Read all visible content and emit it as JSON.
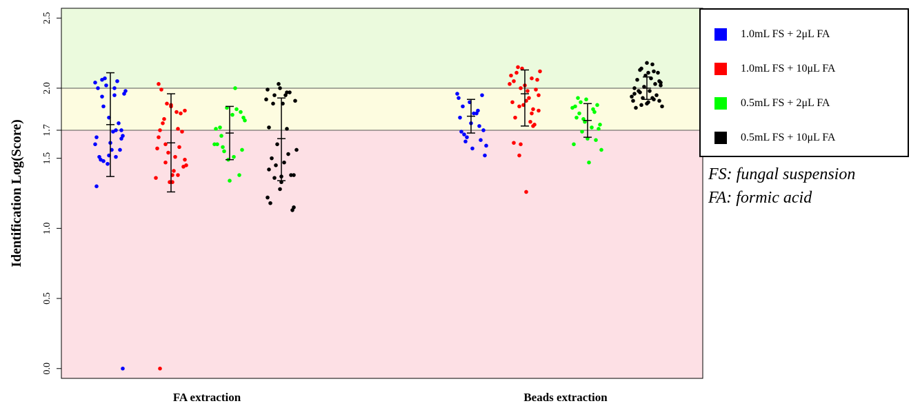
{
  "chart_data": {
    "type": "scatter",
    "title": "",
    "xlabel": "",
    "ylabel": "Identification Log(Score)",
    "ylim": [
      -0.07,
      2.57
    ],
    "yticks": [
      "0.0",
      "0.5",
      "1.0",
      "1.5",
      "1.7",
      "2.0",
      "2.5"
    ],
    "grid": false,
    "legend_position": "top-right",
    "categories": [
      "FA extraction",
      "Beads extraction"
    ],
    "thresholds": [
      1.7,
      2.0
    ],
    "zones": [
      {
        "from": -0.07,
        "to": 1.7,
        "color": "#fde0e5"
      },
      {
        "from": 1.7,
        "to": 2.0,
        "color": "#fdfce0"
      },
      {
        "from": 2.0,
        "to": 2.57,
        "color": "#ebfadd"
      }
    ],
    "series": [
      {
        "name": "1.0mL FS + 2μL FA",
        "color": "#0000ff",
        "groups": [
          {
            "category": "FA extraction",
            "mean": 1.74,
            "err_low": 1.37,
            "err_high": 2.11,
            "values": [
              2.04,
              2.0,
              1.94,
              1.64,
              1.52,
              1.3,
              1.7,
              1.87,
              1.66,
              1.61,
              2.0,
              2.05,
              2.07,
              1.96,
              1.56,
              1.51,
              1.75,
              2.02,
              1.98,
              1.69,
              1.49,
              1.56,
              1.46,
              1.6,
              1.95,
              2.06,
              1.7,
              1.79,
              1.65,
              1.51,
              1.48,
              0.0
            ]
          },
          {
            "category": "Beads extraction",
            "mean": 1.8,
            "err_low": 1.68,
            "err_high": 1.92,
            "values": [
              1.87,
              1.95,
              1.9,
              1.96,
              1.82,
              1.67,
              1.7,
              1.75,
              1.93,
              1.84,
              1.62,
              1.52,
              1.57,
              1.79,
              1.73,
              1.65,
              1.59,
              1.82,
              1.69,
              1.63
            ]
          }
        ]
      },
      {
        "name": "1.0mL FS + 10μL FA",
        "color": "#ff0000",
        "groups": [
          {
            "category": "FA extraction",
            "mean": 1.61,
            "err_low": 1.26,
            "err_high": 1.96,
            "values": [
              1.87,
              2.03,
              1.71,
              1.6,
              1.49,
              1.38,
              1.7,
              1.58,
              1.89,
              1.45,
              1.41,
              1.99,
              1.82,
              1.54,
              1.36,
              1.51,
              1.75,
              1.69,
              1.33,
              1.57,
              1.83,
              1.78,
              1.44,
              1.88,
              1.65,
              1.38,
              1.47,
              1.84,
              1.33,
              0.0
            ]
          },
          {
            "category": "Beads extraction",
            "mean": 1.96,
            "err_low": 1.73,
            "err_high": 2.13,
            "values": [
              1.82,
              1.87,
              1.95,
              1.91,
              2.05,
              1.85,
              1.6,
              2.12,
              1.98,
              1.79,
              1.74,
              2.14,
              2.03,
              1.93,
              2.11,
              1.99,
              1.88,
              2.09,
              1.76,
              2.15,
              2.06,
              2.02,
              1.9,
              2.07,
              1.52,
              1.84,
              1.26,
              1.61,
              1.73,
              2.0
            ]
          }
        ]
      },
      {
        "name": "0.5mL FS + 2μL FA",
        "color": "#00ff00",
        "groups": [
          {
            "category": "FA extraction",
            "mean": 1.68,
            "err_low": 1.49,
            "err_high": 1.87,
            "values": [
              1.77,
              1.81,
              1.72,
              1.38,
              1.86,
              1.6,
              1.51,
              1.66,
              1.83,
              1.49,
              1.71,
              2.0,
              1.58,
              1.56,
              1.34,
              1.6,
              1.85,
              1.55,
              1.79
            ]
          },
          {
            "category": "Beads extraction",
            "mean": 1.77,
            "err_low": 1.65,
            "err_high": 1.89,
            "values": [
              1.93,
              1.88,
              1.76,
              1.86,
              1.72,
              1.82,
              1.71,
              1.92,
              1.6,
              1.85,
              1.9,
              1.74,
              1.64,
              1.87,
              1.83,
              1.69,
              1.56,
              1.47,
              1.79,
              1.63,
              1.78
            ]
          }
        ]
      },
      {
        "name": "0.5mL FS + 10μL FA",
        "color": "#000000",
        "groups": [
          {
            "category": "FA extraction",
            "mean": 1.64,
            "err_low": 1.34,
            "err_high": 1.93,
            "values": [
              2.0,
              1.99,
              1.97,
              1.95,
              1.38,
              1.37,
              1.42,
              1.53,
              1.45,
              1.91,
              1.89,
              1.18,
              1.97,
              1.6,
              1.56,
              1.47,
              1.5,
              1.38,
              2.03,
              1.92,
              1.95,
              1.89,
              1.13,
              1.28,
              1.22,
              1.71,
              1.36,
              1.15,
              1.33,
              1.72
            ]
          },
          {
            "category": "Beads extraction",
            "mean": 2.0,
            "err_low": 1.92,
            "err_high": 2.08,
            "values": [
              1.93,
              1.97,
              1.91,
              1.89,
              1.96,
              1.92,
              1.88,
              2.04,
              1.9,
              1.86,
              2.03,
              1.93,
              1.87,
              1.98,
              2.06,
              1.95,
              2.01,
              1.94,
              2.07,
              1.98,
              2.11,
              2.09,
              1.91,
              2.17,
              2.13,
              2.05,
              2.18,
              2.0,
              2.12,
              2.14,
              2.02,
              2.11
            ]
          }
        ]
      }
    ],
    "legend": [
      {
        "label": "1.0mL FS + 2μL FA",
        "color": "#0000ff"
      },
      {
        "label": "1.0mL FS + 10μL FA",
        "color": "#ff0000"
      },
      {
        "label": "0.5mL FS + 2μL FA",
        "color": "#00ff00"
      },
      {
        "label": "0.5mL FS + 10μL FA",
        "color": "#000000"
      }
    ]
  },
  "notes": [
    "FS: fungal suspension",
    "FA: formic acid"
  ]
}
